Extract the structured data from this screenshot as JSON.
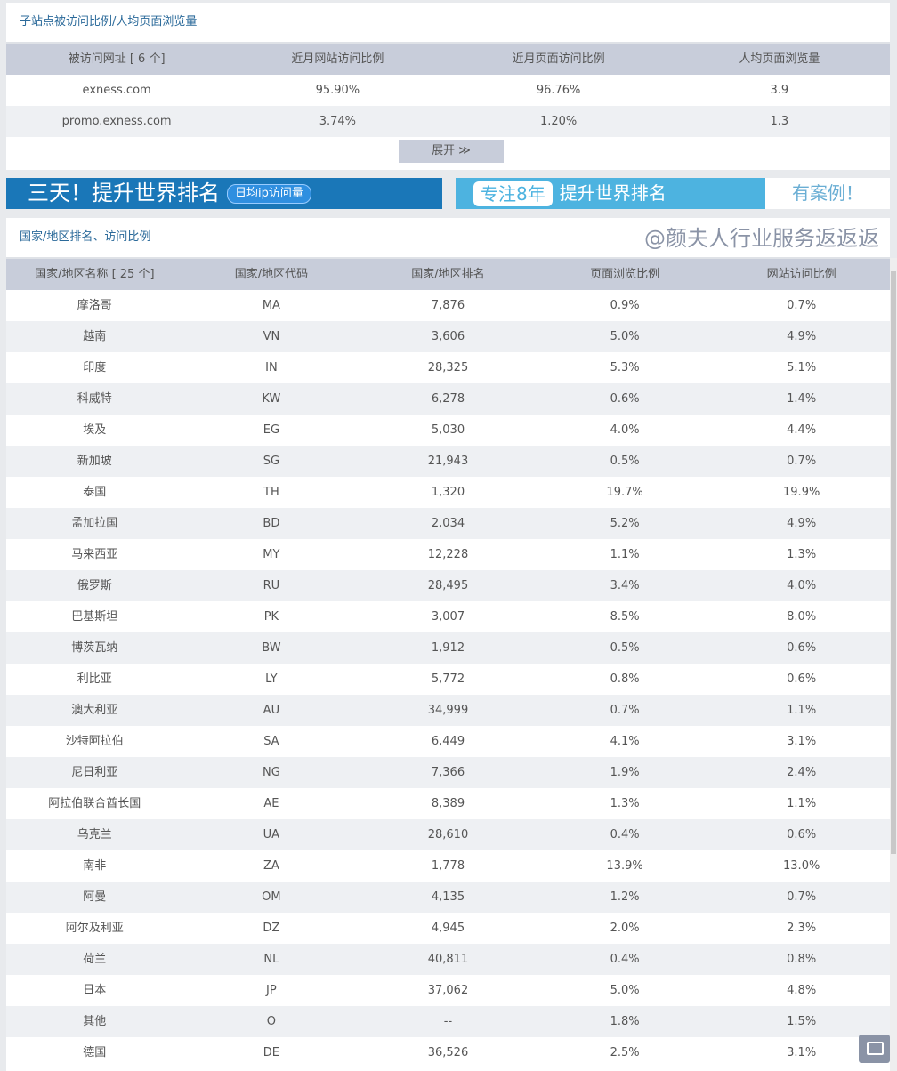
{
  "subsite": {
    "title": "子站点被访问比例/人均页面浏览量",
    "headers": [
      "被访问网址 [ 6 个]",
      "近月网站访问比例",
      "近月页面访问比例",
      "人均页面浏览量"
    ],
    "rows": [
      [
        "exness.com",
        "95.90%",
        "96.76%",
        "3.9"
      ],
      [
        "promo.exness.com",
        "3.74%",
        "1.20%",
        "1.3"
      ]
    ],
    "expand_label": "展开 ≫"
  },
  "banners": {
    "left_text": "三天！提升世界排名",
    "left_badge": "日均ip访问量",
    "right_badge": "专注8年",
    "right_text": "提升世界排名",
    "right_tail": "有案例！",
    "left_color": "#1a77b8",
    "right_color": "#4db3e0"
  },
  "country": {
    "title": "国家/地区排名、访问比例",
    "headers": [
      "国家/地区名称 [ 25 个]",
      "国家/地区代码",
      "国家/地区排名",
      "页面浏览比例",
      "网站访问比例"
    ],
    "rows": [
      [
        "摩洛哥",
        "MA",
        "7,876",
        "0.9%",
        "0.7%"
      ],
      [
        "越南",
        "VN",
        "3,606",
        "5.0%",
        "4.9%"
      ],
      [
        "印度",
        "IN",
        "28,325",
        "5.3%",
        "5.1%"
      ],
      [
        "科威特",
        "KW",
        "6,278",
        "0.6%",
        "1.4%"
      ],
      [
        "埃及",
        "EG",
        "5,030",
        "4.0%",
        "4.4%"
      ],
      [
        "新加坡",
        "SG",
        "21,943",
        "0.5%",
        "0.7%"
      ],
      [
        "泰国",
        "TH",
        "1,320",
        "19.7%",
        "19.9%"
      ],
      [
        "孟加拉国",
        "BD",
        "2,034",
        "5.2%",
        "4.9%"
      ],
      [
        "马来西亚",
        "MY",
        "12,228",
        "1.1%",
        "1.3%"
      ],
      [
        "俄罗斯",
        "RU",
        "28,495",
        "3.4%",
        "4.0%"
      ],
      [
        "巴基斯坦",
        "PK",
        "3,007",
        "8.5%",
        "8.0%"
      ],
      [
        "博茨瓦纳",
        "BW",
        "1,912",
        "0.5%",
        "0.6%"
      ],
      [
        "利比亚",
        "LY",
        "5,772",
        "0.8%",
        "0.6%"
      ],
      [
        "澳大利亚",
        "AU",
        "34,999",
        "0.7%",
        "1.1%"
      ],
      [
        "沙特阿拉伯",
        "SA",
        "6,449",
        "4.1%",
        "3.1%"
      ],
      [
        "尼日利亚",
        "NG",
        "7,366",
        "1.9%",
        "2.4%"
      ],
      [
        "阿拉伯联合酋长国",
        "AE",
        "8,389",
        "1.3%",
        "1.1%"
      ],
      [
        "乌克兰",
        "UA",
        "28,610",
        "0.4%",
        "0.6%"
      ],
      [
        "南非",
        "ZA",
        "1,778",
        "13.9%",
        "13.0%"
      ],
      [
        "阿曼",
        "OM",
        "4,135",
        "1.2%",
        "0.7%"
      ],
      [
        "阿尔及利亚",
        "DZ",
        "4,945",
        "2.0%",
        "2.3%"
      ],
      [
        "荷兰",
        "NL",
        "40,811",
        "0.4%",
        "0.8%"
      ],
      [
        "日本",
        "JP",
        "37,062",
        "5.0%",
        "4.8%"
      ],
      [
        "其他",
        "O",
        "--",
        "1.8%",
        "1.5%"
      ],
      [
        "德国",
        "DE",
        "36,526",
        "2.5%",
        "3.1%"
      ]
    ]
  },
  "watermark": "@颜夫人行业服务返返返",
  "feedback_icon": "comment-icon"
}
